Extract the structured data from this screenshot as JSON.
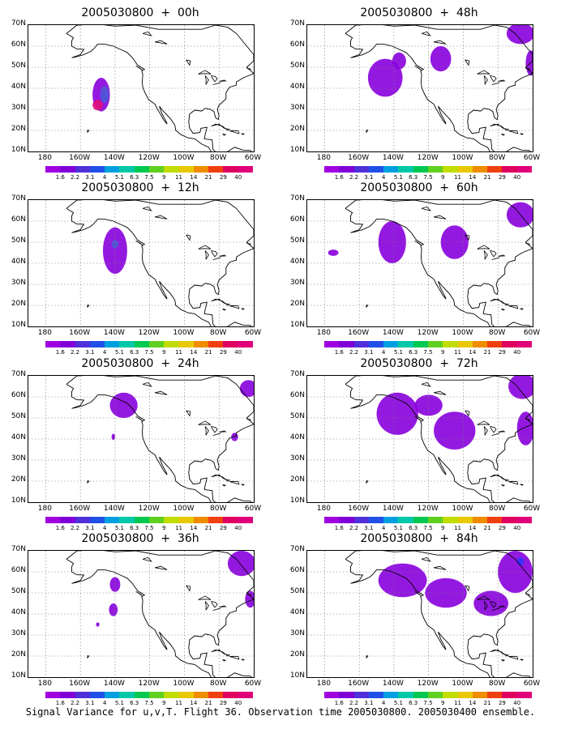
{
  "panels": [
    {
      "title": "2005030800 + 00h",
      "blobs": [
        {
          "lon": -148,
          "lat": 37,
          "rlon": 5,
          "rlat": 8,
          "c": "#8800dd"
        },
        {
          "lon": -146,
          "lat": 37,
          "rlon": 2.5,
          "rlat": 4,
          "c": "#4a5ad6"
        },
        {
          "lon": -150,
          "lat": 32,
          "rlon": 3,
          "rlat": 2.5,
          "c": "#e0107a"
        }
      ]
    },
    {
      "title": "2005030800 + 48h",
      "blobs": [
        {
          "lon": -145,
          "lat": 45,
          "rlon": 10,
          "rlat": 9,
          "c": "#8800dd"
        },
        {
          "lon": -137,
          "lat": 53,
          "rlon": 4,
          "rlat": 4,
          "c": "#8800dd"
        },
        {
          "lon": -113,
          "lat": 54,
          "rlon": 6,
          "rlat": 6,
          "c": "#8800dd"
        },
        {
          "lon": -67,
          "lat": 66,
          "rlon": 8,
          "rlat": 5,
          "c": "#8800dd"
        },
        {
          "lon": -61,
          "lat": 52,
          "rlon": 3,
          "rlat": 6,
          "c": "#8800dd"
        }
      ]
    },
    {
      "title": "2005030800 + 12h",
      "blobs": [
        {
          "lon": -140,
          "lat": 46,
          "rlon": 7,
          "rlat": 11,
          "c": "#8800dd"
        },
        {
          "lon": -140,
          "lat": 49,
          "rlon": 2,
          "rlat": 2,
          "c": "#4a5ad6"
        }
      ]
    },
    {
      "title": "2005030800 + 60h",
      "blobs": [
        {
          "lon": -175,
          "lat": 45,
          "rlon": 3,
          "rlat": 1.5,
          "c": "#8800dd"
        },
        {
          "lon": -141,
          "lat": 50,
          "rlon": 8,
          "rlat": 10,
          "c": "#8800dd"
        },
        {
          "lon": -105,
          "lat": 50,
          "rlon": 8,
          "rlat": 8,
          "c": "#8800dd"
        },
        {
          "lon": -67,
          "lat": 63,
          "rlon": 8,
          "rlat": 6,
          "c": "#8800dd"
        }
      ]
    },
    {
      "title": "2005030800 + 24h",
      "blobs": [
        {
          "lon": -135,
          "lat": 56,
          "rlon": 8,
          "rlat": 6,
          "c": "#8800dd"
        },
        {
          "lon": -141,
          "lat": 41,
          "rlon": 1,
          "rlat": 1.5,
          "c": "#8800dd"
        },
        {
          "lon": -63,
          "lat": 64,
          "rlon": 5,
          "rlat": 4,
          "c": "#8800dd"
        },
        {
          "lon": -71,
          "lat": 41,
          "rlon": 2,
          "rlat": 2,
          "c": "#8800dd"
        }
      ]
    },
    {
      "title": "2005030800 + 72h",
      "blobs": [
        {
          "lon": -138,
          "lat": 52,
          "rlon": 12,
          "rlat": 10,
          "c": "#8800dd"
        },
        {
          "lon": -105,
          "lat": 44,
          "rlon": 12,
          "rlat": 9,
          "c": "#8800dd"
        },
        {
          "lon": -120,
          "lat": 56,
          "rlon": 8,
          "rlat": 5,
          "c": "#8800dd"
        },
        {
          "lon": -66,
          "lat": 65,
          "rlon": 8,
          "rlat": 6,
          "c": "#8800dd"
        },
        {
          "lon": -64,
          "lat": 45,
          "rlon": 5,
          "rlat": 8,
          "c": "#8800dd"
        }
      ]
    },
    {
      "title": "2005030800 + 36h",
      "blobs": [
        {
          "lon": -140,
          "lat": 54,
          "rlon": 3,
          "rlat": 3.5,
          "c": "#8800dd"
        },
        {
          "lon": -141,
          "lat": 42,
          "rlon": 2.5,
          "rlat": 3,
          "c": "#8800dd"
        },
        {
          "lon": -150,
          "lat": 35,
          "rlon": 1,
          "rlat": 1,
          "c": "#8800dd"
        },
        {
          "lon": -67,
          "lat": 64,
          "rlon": 8,
          "rlat": 6,
          "c": "#8800dd"
        },
        {
          "lon": -62,
          "lat": 47,
          "rlon": 3,
          "rlat": 4,
          "c": "#8800dd"
        }
      ]
    },
    {
      "title": "2005030800 + 84h",
      "blobs": [
        {
          "lon": -135,
          "lat": 56,
          "rlon": 14,
          "rlat": 8,
          "c": "#8800dd"
        },
        {
          "lon": -110,
          "lat": 50,
          "rlon": 12,
          "rlat": 7,
          "c": "#8800dd"
        },
        {
          "lon": -84,
          "lat": 45,
          "rlon": 10,
          "rlat": 6,
          "c": "#8800dd"
        },
        {
          "lon": -70,
          "lat": 60,
          "rlon": 10,
          "rlat": 10,
          "c": "#8800dd"
        },
        {
          "lon": -67,
          "lat": 65,
          "rlon": 2,
          "rlat": 2,
          "c": "#3333ff"
        }
      ]
    }
  ],
  "y_ticks": [
    "70N",
    "60N",
    "50N",
    "40N",
    "30N",
    "20N",
    "10N"
  ],
  "x_ticks": [
    "180",
    "160W",
    "140W",
    "120W",
    "100W",
    "80W",
    "60W"
  ],
  "colorbar": {
    "labels": [
      "1.6",
      "2.2",
      "3.1",
      "4",
      "5.1",
      "6.3",
      "7.5",
      "9",
      "11",
      "14",
      "21",
      "29",
      "40"
    ],
    "colors": [
      "#a000e0",
      "#8000d8",
      "#5030d8",
      "#2050e8",
      "#00a0e0",
      "#00c8a8",
      "#00c850",
      "#60d020",
      "#c0dc00",
      "#e8c800",
      "#f08c00",
      "#f04010",
      "#e00060",
      "#e0007a"
    ]
  },
  "caption": "Signal Variance for u,v,T. Flight 36. Observation time 2005030800. 2005030400 ensemble."
}
